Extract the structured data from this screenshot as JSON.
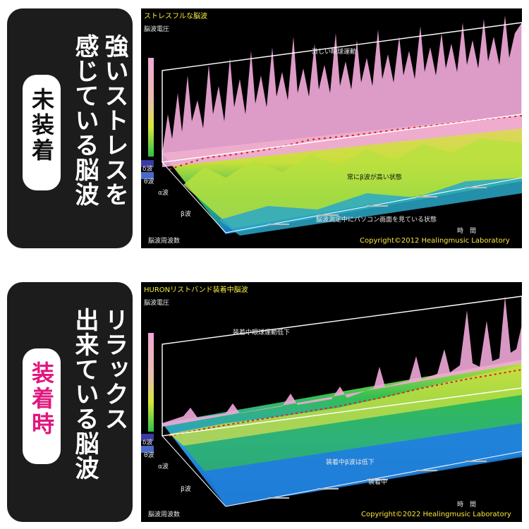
{
  "panels": {
    "top": {
      "heading_line1": "強いストレスを",
      "heading_line2": "感じている脳波",
      "badge": "未装着",
      "badge_color": "#111111",
      "graph_title": "ストレスフルな脳波",
      "y_axis_label": "脳波電圧",
      "annotation_peak": "激しい眼球運動",
      "annotation_beta": "常にβ波が高い状態",
      "annotation_task": "脳波測定中にパソコン画面を見ている状態",
      "bands": [
        "δ波",
        "θ波",
        "α波",
        "β波"
      ],
      "freq_axis_label": "脳波周波数",
      "time_axis_label": "時　間",
      "copyright": "Copyright©2012 Healingmusic Laboratory"
    },
    "bottom": {
      "heading_line1": "リラックス",
      "heading_line2": "出来ている脳波",
      "badge": "装着時",
      "badge_color": "#e0177e",
      "graph_title": "HURONリストバンド装着中脳波",
      "y_axis_label": "脳波電圧",
      "annotation_peak": "装着中眼球運動低下",
      "annotation_beta": "装着中β波は低下",
      "annotation_task": "装着中",
      "bands": [
        "δ波",
        "θ波",
        "α波",
        "β波"
      ],
      "freq_axis_label": "脳波周波数",
      "time_axis_label": "時　間",
      "copyright": "Copyright©2022 Healingmusic Laboratory"
    }
  },
  "colors": {
    "card_bg": "#1c1c1c",
    "plot_bg": "#000000",
    "title_yellow": "#f2ee38",
    "peak_pink": "#f0a8d8",
    "mid_yellow": "#d8e838",
    "low_green": "#2ec04a",
    "base_blue": "#2a8ed8"
  },
  "icons": [
    "spectral-scale-bar-icon"
  ]
}
